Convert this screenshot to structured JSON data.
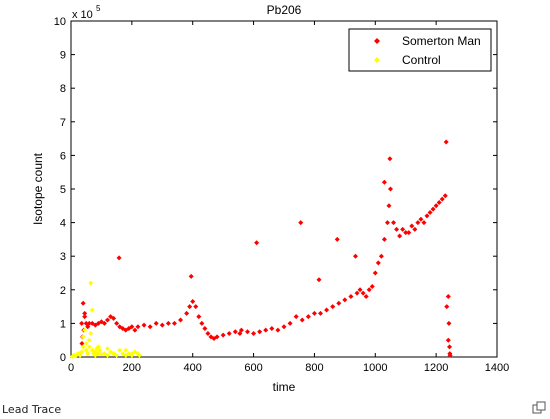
{
  "caption": "Lead Trace",
  "icons": {
    "enlarge": "enlarge-icon"
  },
  "chart_data": {
    "type": "scatter",
    "title": "Pb206",
    "xlabel": "time",
    "ylabel": "Isotope count",
    "y_multiplier_label": "x 10",
    "y_multiplier_exponent": "5",
    "xlim": [
      0,
      1400
    ],
    "ylim": [
      0,
      10
    ],
    "xticks": [
      0,
      200,
      400,
      600,
      800,
      1000,
      1200,
      1400
    ],
    "yticks": [
      0,
      1,
      2,
      3,
      4,
      5,
      6,
      7,
      8,
      9,
      10
    ],
    "legend_position": "top-right",
    "grid": false,
    "series": [
      {
        "name": "Somerton Man",
        "color": "#ff0000",
        "marker": "diamond",
        "x": [
          35,
          40,
          45,
          50,
          55,
          60,
          70,
          80,
          90,
          100,
          110,
          120,
          130,
          140,
          150,
          160,
          170,
          180,
          190,
          200,
          210,
          220,
          240,
          260,
          280,
          300,
          320,
          340,
          360,
          380,
          390,
          400,
          410,
          420,
          430,
          440,
          450,
          460,
          470,
          480,
          500,
          520,
          540,
          560,
          580,
          600,
          620,
          640,
          660,
          680,
          700,
          720,
          740,
          760,
          780,
          800,
          820,
          840,
          860,
          880,
          900,
          920,
          940,
          950,
          960,
          970,
          980,
          990,
          1000,
          1010,
          1020,
          1030,
          1040,
          1045,
          1050,
          1060,
          1070,
          1080,
          1090,
          1100,
          1110,
          1120,
          1130,
          1140,
          1150,
          1160,
          1170,
          1180,
          1190,
          1200,
          1210,
          1220,
          1230,
          1235,
          1240,
          1245,
          36,
          38,
          42,
          45,
          158,
          395,
          555,
          610,
          755,
          815,
          875,
          935,
          1030,
          1048,
          1233,
          1240,
          1242,
          1244,
          1246
        ],
        "y": [
          1.0,
          1.6,
          1.3,
          1.0,
          0.9,
          1.0,
          1.0,
          0.95,
          1.0,
          1.05,
          1.0,
          1.1,
          1.2,
          1.15,
          1.0,
          0.9,
          0.85,
          0.8,
          0.85,
          0.9,
          0.8,
          0.9,
          0.95,
          0.9,
          1.0,
          0.95,
          1.0,
          1.0,
          1.1,
          1.3,
          1.5,
          1.65,
          1.5,
          1.2,
          1.0,
          0.85,
          0.7,
          0.6,
          0.55,
          0.6,
          0.65,
          0.7,
          0.75,
          0.8,
          0.75,
          0.7,
          0.75,
          0.8,
          0.85,
          0.8,
          0.9,
          1.0,
          1.2,
          1.1,
          1.2,
          1.3,
          1.3,
          1.4,
          1.5,
          1.6,
          1.7,
          1.8,
          1.9,
          2.0,
          1.9,
          1.8,
          2.0,
          2.1,
          2.5,
          2.8,
          3.0,
          3.5,
          4.0,
          4.5,
          5.0,
          4.0,
          3.8,
          3.6,
          3.8,
          3.7,
          3.7,
          3.9,
          3.8,
          4.0,
          4.1,
          4.0,
          4.2,
          4.3,
          4.4,
          4.5,
          4.6,
          4.7,
          4.8,
          1.5,
          0.5,
          0.1,
          0.4,
          0.6,
          0.8,
          1.2,
          2.95,
          2.4,
          0.7,
          3.4,
          4.0,
          2.3,
          3.5,
          3.0,
          5.2,
          5.9,
          6.4,
          1.8,
          1.0,
          0.3,
          0.05
        ]
      },
      {
        "name": "Control",
        "color": "#ffff00",
        "marker": "diamond",
        "x": [
          5,
          10,
          15,
          20,
          25,
          30,
          35,
          40,
          45,
          50,
          55,
          60,
          65,
          70,
          75,
          80,
          85,
          90,
          95,
          100,
          110,
          120,
          130,
          140,
          150,
          160,
          170,
          180,
          190,
          200,
          210,
          220,
          225,
          40,
          50,
          60,
          65,
          70,
          80,
          90,
          120,
          140,
          180,
          200
        ],
        "y": [
          0.02,
          0.05,
          0.03,
          0.08,
          0.1,
          0.05,
          0.15,
          0.3,
          0.8,
          0.2,
          0.1,
          0.5,
          2.2,
          1.4,
          0.1,
          0.05,
          0.25,
          0.1,
          0.2,
          0.08,
          0.1,
          0.05,
          0.15,
          0.1,
          0.05,
          0.2,
          0.1,
          0.05,
          0.1,
          0.05,
          0.15,
          0.1,
          0.05,
          0.6,
          0.4,
          0.3,
          0.7,
          0.2,
          0.15,
          0.3,
          0.25,
          0.1,
          0.2,
          0.1
        ]
      }
    ]
  }
}
